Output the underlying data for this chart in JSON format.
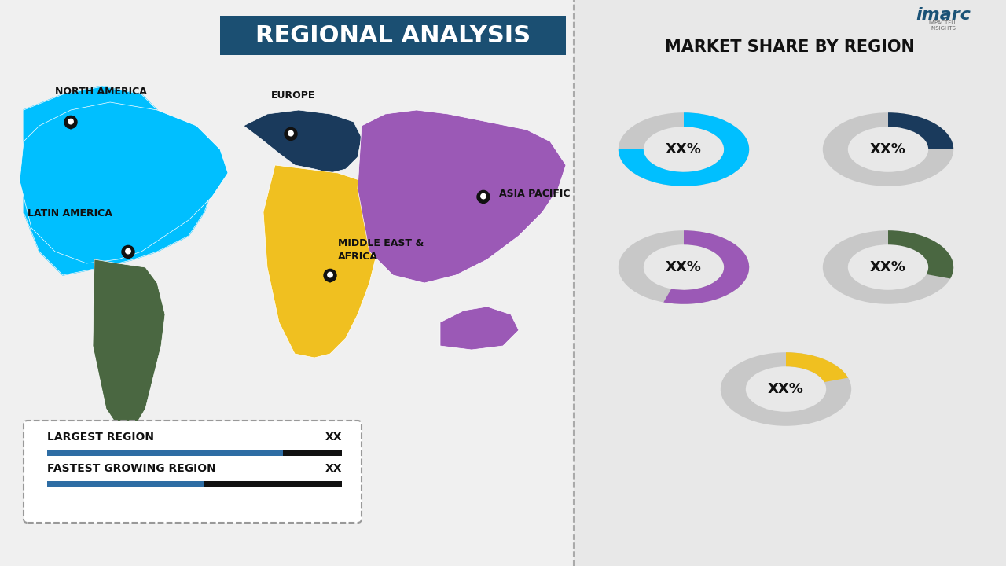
{
  "title": "REGIONAL ANALYSIS",
  "bg_color": "#f0f0f0",
  "map_bg": "#f0f0f0",
  "right_panel_bg": "#e8e8e8",
  "divider_color": "#cccccc",
  "title_bg": "#1a5276",
  "title_text_color": "#ffffff",
  "market_share_title": "MARKET SHARE BY REGION",
  "donut_label": "XX%",
  "donuts": [
    {
      "color": "#00bfff",
      "label": "XX%",
      "value": 0.75
    },
    {
      "color": "#1a3a5c",
      "label": "XX%",
      "value": 0.25
    },
    {
      "color": "#9b59b6",
      "label": "XX%",
      "value": 0.55
    },
    {
      "color": "#4a6741",
      "label": "XX%",
      "value": 0.3
    },
    {
      "color": "#f0c020",
      "label": "XX%",
      "value": 0.2
    }
  ],
  "regions": [
    {
      "name": "NORTH AMERICA",
      "color": "#00bfff"
    },
    {
      "name": "EUROPE",
      "color": "#1a3a5c"
    },
    {
      "name": "ASIA PACIFIC",
      "color": "#9b59b6"
    },
    {
      "name": "MIDDLE EAST &\nAFRICA",
      "color": "#f0c020"
    },
    {
      "name": "LATIN AMERICA",
      "color": "#4a6741"
    }
  ],
  "legend_items": [
    {
      "label": "LARGEST REGION",
      "value": "XX"
    },
    {
      "label": "FASTEST GROWING REGION",
      "value": "XX"
    }
  ],
  "legend_bar_color1": "#2e6da4",
  "legend_bar_color2": "#000000",
  "gray_color": "#c8c8c8"
}
